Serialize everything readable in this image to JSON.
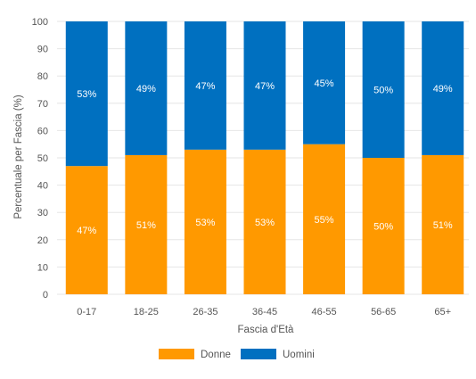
{
  "chart_data": {
    "type": "bar",
    "stacked": true,
    "categories": [
      "0-17",
      "18-25",
      "26-35",
      "36-45",
      "46-55",
      "56-65",
      "65+"
    ],
    "series": [
      {
        "name": "Donne",
        "color": "#ff9900",
        "values": [
          47,
          51,
          53,
          53,
          55,
          50,
          51
        ],
        "labels": [
          "47%",
          "51%",
          "53%",
          "53%",
          "55%",
          "50%",
          "51%"
        ]
      },
      {
        "name": "Uomini",
        "color": "#0070c0",
        "values": [
          53,
          49,
          47,
          47,
          45,
          50,
          49
        ],
        "labels": [
          "53%",
          "49%",
          "47%",
          "47%",
          "45%",
          "50%",
          "49%"
        ]
      }
    ],
    "xlabel": "Fascia d'Età",
    "ylabel": "Percentuale per Fascia (%)",
    "ylim": [
      0,
      100
    ],
    "yticks": [
      "0",
      "10",
      "20",
      "30",
      "40",
      "50",
      "60",
      "70",
      "80",
      "90",
      "100"
    ],
    "grid": true,
    "legend_position": "bottom"
  }
}
